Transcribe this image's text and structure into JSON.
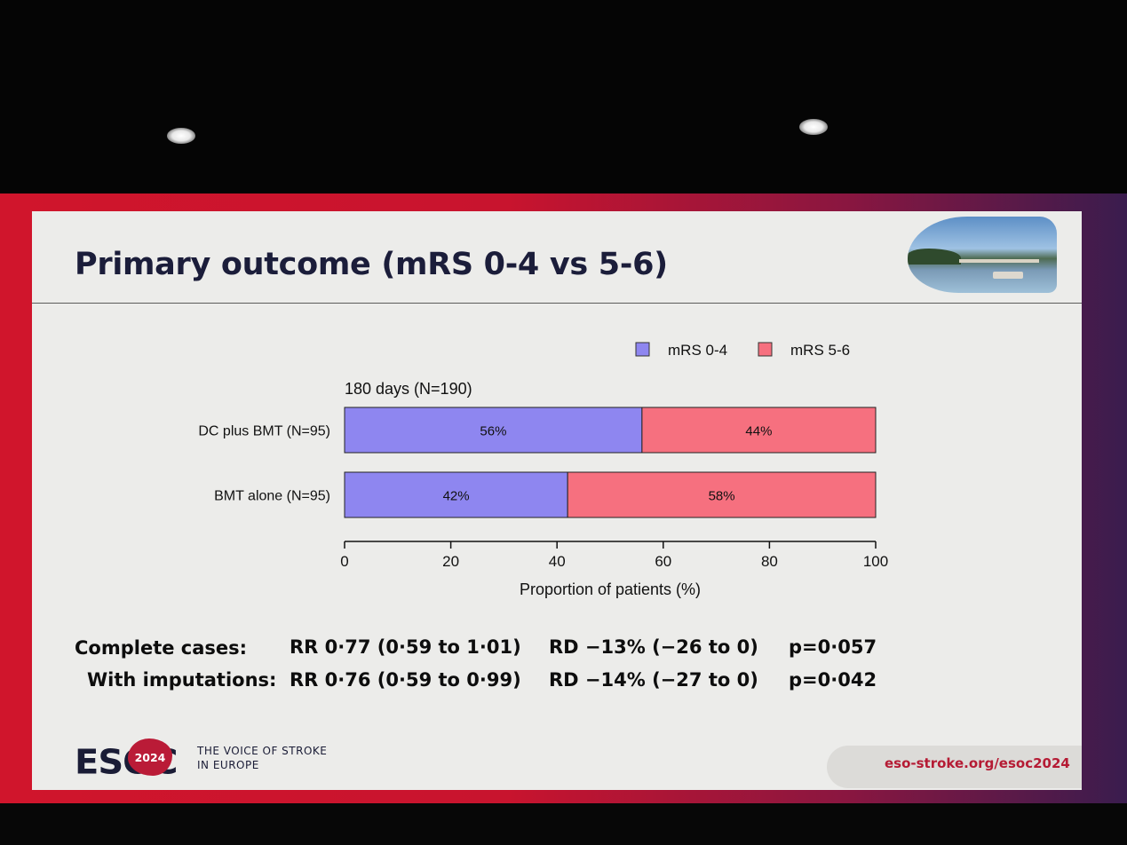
{
  "slide": {
    "title": "Primary outcome (mRS 0-4 vs 5-6)",
    "footer": {
      "logo_text": "ESOC",
      "year": "2024",
      "tagline_line1": "THE VOICE OF STROKE",
      "tagline_line2": "IN EUROPE",
      "url": "eso-stroke.org/esoc2024"
    }
  },
  "chart_data": {
    "type": "bar",
    "orientation": "horizontal",
    "stacked": true,
    "subtitle": "180 days (N=190)",
    "categories": [
      "DC plus BMT (N=95)",
      "BMT alone (N=95)"
    ],
    "series": [
      {
        "name": "mRS 0-4",
        "values": [
          56,
          42
        ],
        "labels": [
          "56%",
          "42%"
        ],
        "color": "#8e86f0"
      },
      {
        "name": "mRS 5-6",
        "values": [
          44,
          58
        ],
        "labels": [
          "44%",
          "58%"
        ],
        "color": "#f6707f"
      }
    ],
    "xlabel": "Proportion of patients (%)",
    "xlim": [
      0,
      100
    ],
    "xticks": [
      0,
      20,
      40,
      60,
      80,
      100
    ],
    "legend": "top-right",
    "grid": false
  },
  "stats": {
    "rows": [
      {
        "label": "Complete cases:",
        "rr": "RR 0·77 (0·59 to 1·01)",
        "rd": "RD −13% (−26 to 0)",
        "p": "p=0·057"
      },
      {
        "label": "With imputations:",
        "rr": "RR 0·76 (0·59 to 0·99)",
        "rd": "RD −14% (−27 to 0)",
        "p": "p=0·042"
      }
    ]
  },
  "colors": {
    "frame": "#d0152c",
    "slide_bg": "#ececea",
    "title": "#1b1d3a",
    "brand_red": "#b51b34"
  }
}
